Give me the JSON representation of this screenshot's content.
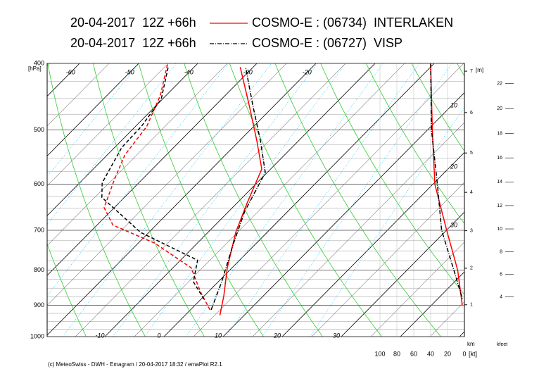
{
  "chart_data": {
    "type": "emagram",
    "footer": "(c) MeteoSwiss - DWH - Emagram / 20-04-2017 18:32 / emaPlot R2.1",
    "pressure_unit": "[hPa]",
    "ylim": [
      400,
      1000
    ],
    "yticks": [
      400,
      500,
      600,
      700,
      800,
      900,
      1000
    ],
    "log_scale": true,
    "grid": true,
    "temperature_ticks_top": [
      -60,
      -50,
      -40,
      -30,
      -20
    ],
    "temperature_ticks_bottom": [
      -10,
      0,
      10,
      20,
      30
    ],
    "mixing_ratio_labels": [
      10,
      20,
      30
    ],
    "height_unit": "[m]",
    "height_axis_label": "km",
    "height_ticks": [
      1,
      2,
      3,
      4,
      5,
      6,
      7
    ],
    "kfeet_label": "kfeet",
    "kfeet_ticks": [
      4,
      6,
      8,
      10,
      12,
      14,
      16,
      18,
      20,
      22
    ],
    "wind_unit": "[kt]",
    "wind_xlim": [
      100,
      0
    ],
    "wind_ticks": [
      100,
      80,
      60,
      40,
      20,
      0
    ],
    "stations": [
      {
        "run": "20-04-2017  12Z +66h",
        "name": "COSMO-E : (06734)  INTERLAKEN",
        "color": "#ff0000",
        "line_style": "solid",
        "temperature": {
          "pressure": [
            931,
            872,
            794,
            705,
            641,
            570,
            519,
            461,
            405
          ],
          "values": [
            5.9,
            3.3,
            -0.8,
            -5.3,
            -8.2,
            -11.5,
            -17,
            -24.2,
            -32.2
          ]
        },
        "dewpoint": {
          "pressure": [
            914,
            862,
            794,
            731,
            688,
            649,
            590,
            544,
            494,
            445,
            400
          ],
          "values": [
            3.3,
            -1.2,
            -6.9,
            -17.2,
            -27.3,
            -31.7,
            -34.7,
            -37,
            -38.1,
            -41,
            -45.1
          ]
        },
        "wind_speed": {
          "pressure": [
            400,
            500,
            600,
            700,
            800,
            900
          ],
          "values": [
            40,
            38,
            35,
            21,
            8,
            2.5
          ]
        }
      },
      {
        "run": "20-04-2017  12Z +66h",
        "name": "COSMO-E : (06727)  VISP",
        "color": "#000000",
        "line_style": "dashdot",
        "temperature": {
          "pressure": [
            914,
            832,
            739,
            657,
            577,
            519,
            461,
            405
          ],
          "values": [
            3.5,
            0.6,
            -3.5,
            -7.3,
            -10.3,
            -16.4,
            -23.6,
            -31.3
          ]
        },
        "dewpoint": {
          "pressure": [
            882,
            832,
            774,
            705,
            627,
            597,
            530,
            494,
            451,
            405
          ],
          "values": [
            0.5,
            -4.2,
            -7.1,
            -21.4,
            -33.8,
            -36.2,
            -38.8,
            -39,
            -40.2,
            -44.4
          ]
        },
        "wind_speed": {
          "pressure": [
            400,
            500,
            600,
            700,
            800,
            880
          ],
          "values": [
            40,
            39,
            32,
            27,
            12.5,
            2.5
          ]
        }
      }
    ]
  }
}
